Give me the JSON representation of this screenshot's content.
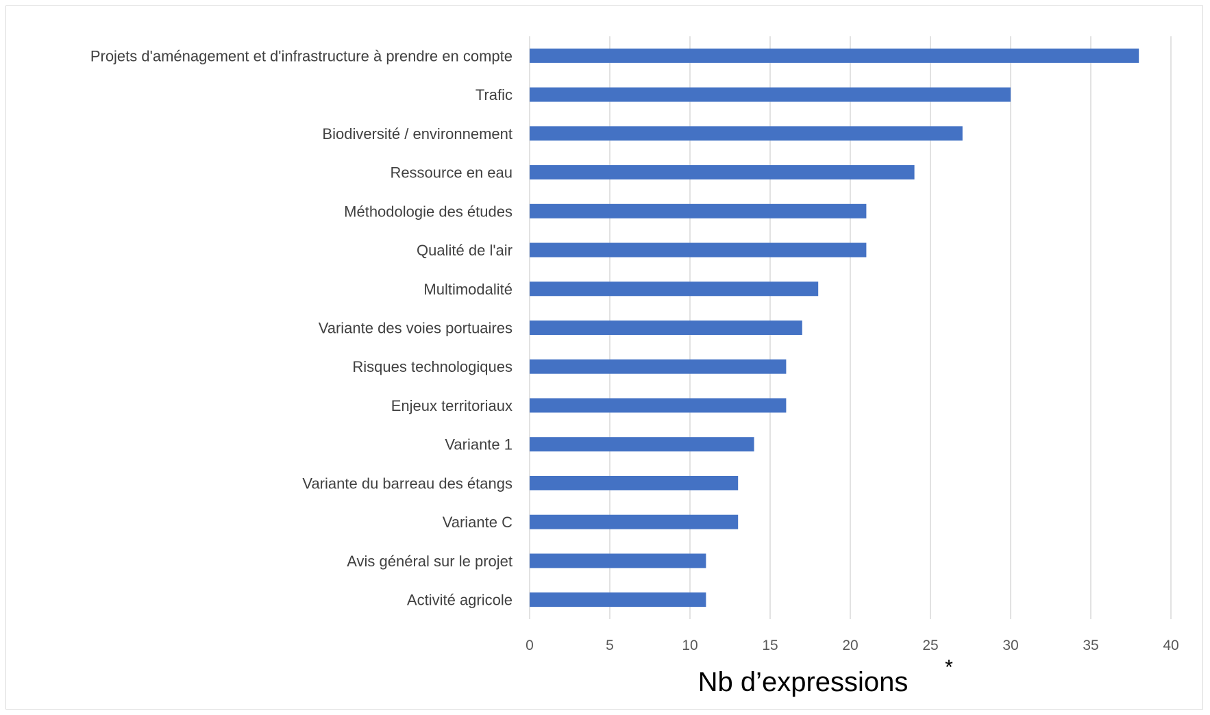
{
  "chart_data": {
    "type": "bar",
    "orientation": "horizontal",
    "categories": [
      "Projets d'aménagement et d'infrastructure à prendre en compte",
      "Trafic",
      "Biodiversité / environnement",
      "Ressource en eau",
      "Méthodologie des études",
      "Qualité de l'air",
      "Multimodalité",
      "Variante des voies portuaires",
      "Risques technologiques",
      "Enjeux territoriaux",
      "Variante 1",
      "Variante du barreau des étangs",
      "Variante C",
      "Avis général sur le projet",
      "Activité agricole"
    ],
    "values": [
      38,
      30,
      27,
      24,
      21,
      21,
      18,
      17,
      16,
      16,
      14,
      13,
      13,
      11,
      11
    ],
    "xlabel": "Nb d’expressions",
    "annotation": "*",
    "xlim": [
      0,
      40
    ],
    "xticks": [
      0,
      5,
      10,
      15,
      20,
      25,
      30,
      35,
      40
    ],
    "grid": "vertical",
    "bar_color": "#4472C4",
    "grid_color": "#d9d9d9"
  }
}
